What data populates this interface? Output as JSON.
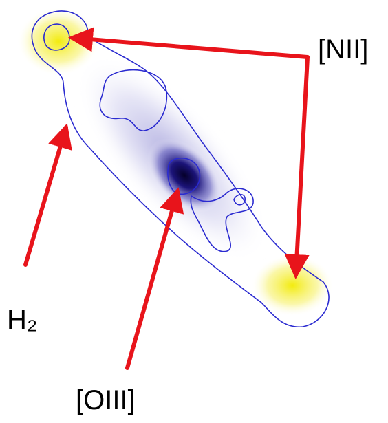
{
  "labels": {
    "nii": "[NII]",
    "h2": "H₂",
    "oiii": "[OIII]"
  }
}
